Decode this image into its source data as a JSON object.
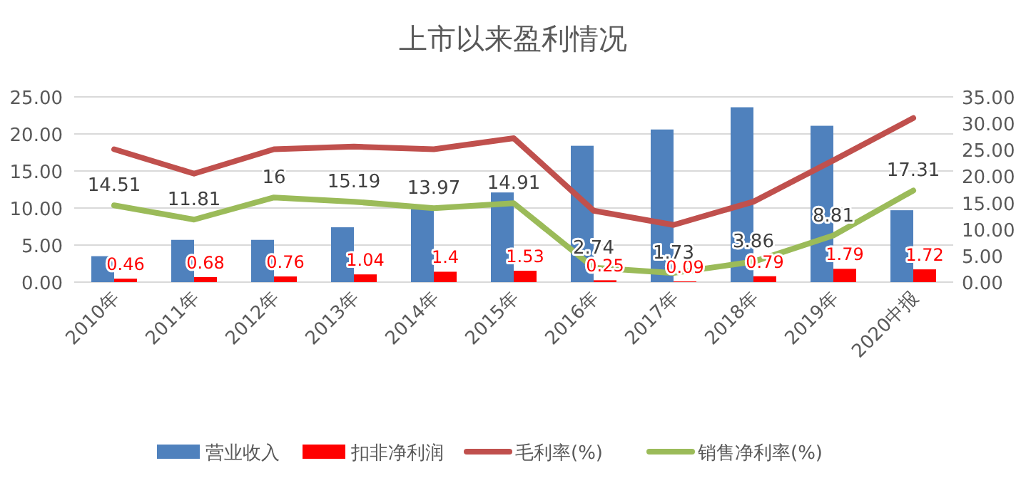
{
  "chart_data": {
    "type": "bar",
    "title": "上市以来盈利情况",
    "categories": [
      "2010年",
      "2011年",
      "2012年",
      "2013年",
      "2014年",
      "2015年",
      "2016年",
      "2017年",
      "2018年",
      "2019年",
      "2020中报"
    ],
    "series": [
      {
        "name": "营业收入",
        "color": "#4f81bd",
        "values": [
          3.5,
          5.7,
          5.7,
          7.4,
          9.9,
          12.1,
          18.4,
          20.6,
          23.6,
          21.1,
          9.7
        ]
      },
      {
        "name": "扣非净利润",
        "color": "#ff0000",
        "values": [
          0.46,
          0.68,
          0.76,
          1.04,
          1.4,
          1.53,
          0.25,
          0.09,
          0.79,
          1.79,
          1.72
        ],
        "value_labels": [
          "0.46",
          "0.68",
          "0.76",
          "1.04",
          "1.4",
          "1.53",
          "0.25",
          "0.09",
          "0.79",
          "1.79",
          "1.72"
        ]
      },
      {
        "name": "毛利率(%)",
        "type": "line",
        "axis": "y2",
        "color": "#c0504d",
        "values": [
          25.1,
          20.5,
          25.1,
          25.6,
          25.1,
          27.2,
          13.5,
          10.8,
          15.2,
          23.0,
          31.0
        ]
      },
      {
        "name": "销售净利率(%)",
        "type": "line",
        "axis": "y2",
        "color": "#9bbb59",
        "values": [
          14.51,
          11.81,
          16,
          15.19,
          13.97,
          14.91,
          2.74,
          1.73,
          3.86,
          8.81,
          17.31
        ],
        "value_labels": [
          "14.51",
          "11.81",
          "16",
          "15.19",
          "13.97",
          "14.91",
          "2.74",
          "1.73",
          "3.86",
          "8.81",
          "17.31"
        ]
      }
    ],
    "ylim": [
      0,
      25
    ],
    "yticks": [
      {
        "value": 0,
        "label": "0.00"
      },
      {
        "value": 5,
        "label": "5.00"
      },
      {
        "value": 10,
        "label": "10.00"
      },
      {
        "value": 15,
        "label": "15.00"
      },
      {
        "value": 20,
        "label": "20.00"
      },
      {
        "value": 25,
        "label": "25.00"
      }
    ],
    "y2lim": [
      0,
      35
    ],
    "y2ticks": [
      {
        "value": 0,
        "label": "0.00"
      },
      {
        "value": 5,
        "label": "5.00"
      },
      {
        "value": 10,
        "label": "10.00"
      },
      {
        "value": 15,
        "label": "15.00"
      },
      {
        "value": 20,
        "label": "20.00"
      },
      {
        "value": 25,
        "label": "25.00"
      },
      {
        "value": 30,
        "label": "30.00"
      },
      {
        "value": 35,
        "label": "35.00"
      }
    ],
    "grid": "y",
    "legend": "bottom"
  }
}
